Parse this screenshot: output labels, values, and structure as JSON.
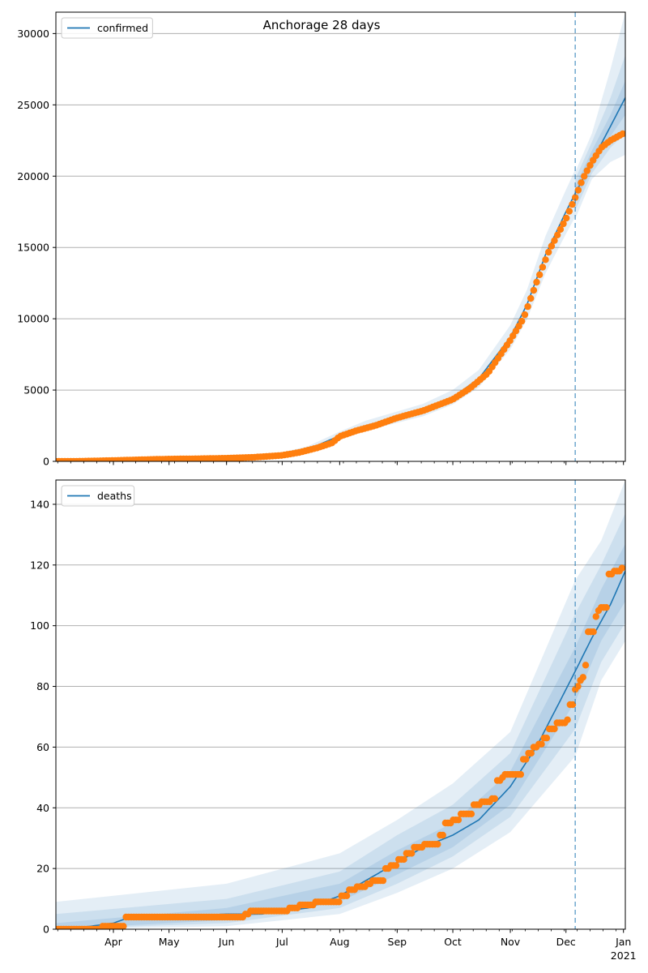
{
  "title": "Anchorage 28 days",
  "colors": {
    "model": "#1f77b4",
    "observed": "#ff7f0e",
    "band": "#1f77b4",
    "grid": "#b0b0b0",
    "vline": "#1f77b4"
  },
  "x_tick_labels": [
    {
      "date": "2020-04-01",
      "label": "Apr"
    },
    {
      "date": "2020-05-01",
      "label": "May"
    },
    {
      "date": "2020-06-01",
      "label": "Jun"
    },
    {
      "date": "2020-07-01",
      "label": "Jul"
    },
    {
      "date": "2020-08-01",
      "label": "Aug"
    },
    {
      "date": "2020-09-01",
      "label": "Sep"
    },
    {
      "date": "2020-10-01",
      "label": "Oct"
    },
    {
      "date": "2020-11-01",
      "label": "Nov"
    },
    {
      "date": "2020-12-01",
      "label": "Dec"
    },
    {
      "date": "2021-01-01",
      "label": "Jan",
      "label2": "2021"
    }
  ],
  "chart_data": [
    {
      "type": "line",
      "title": "Anchorage 28 days",
      "legend": {
        "label": "confirmed",
        "placement": "top-left"
      },
      "xlim": [
        "2020-03-01",
        "2021-01-02"
      ],
      "ylim": [
        0,
        31500
      ],
      "y_ticks": [
        0,
        5000,
        10000,
        15000,
        20000,
        25000,
        30000
      ],
      "grid": "y",
      "forecast_start": "2020-12-06",
      "model": {
        "name": "confirmed",
        "points": [
          [
            "2020-03-01",
            0
          ],
          [
            "2020-04-01",
            80
          ],
          [
            "2020-05-01",
            180
          ],
          [
            "2020-06-01",
            220
          ],
          [
            "2020-06-20",
            300
          ],
          [
            "2020-07-01",
            450
          ],
          [
            "2020-07-15",
            850
          ],
          [
            "2020-08-01",
            1800
          ],
          [
            "2020-08-15",
            2500
          ],
          [
            "2020-09-01",
            3100
          ],
          [
            "2020-09-15",
            3600
          ],
          [
            "2020-10-01",
            4500
          ],
          [
            "2020-10-15",
            5800
          ],
          [
            "2020-11-01",
            8700
          ],
          [
            "2020-11-10",
            11000
          ],
          [
            "2020-11-20",
            14500
          ],
          [
            "2020-12-01",
            17500
          ],
          [
            "2020-12-06",
            18800
          ],
          [
            "2020-12-15",
            21000
          ],
          [
            "2020-12-25",
            23500
          ],
          [
            "2021-01-02",
            25500
          ]
        ]
      },
      "bands": [
        {
          "lower": [
            [
              "2020-12-06",
              17000
            ],
            [
              "2020-12-15",
              19800
            ],
            [
              "2020-12-25",
              21000
            ],
            [
              "2021-01-02",
              21500
            ]
          ],
          "upper": [
            [
              "2020-12-06",
              20300
            ],
            [
              "2020-12-15",
              23000
            ],
            [
              "2020-12-25",
              27500
            ],
            [
              "2021-01-02",
              31500
            ]
          ]
        },
        {
          "lower": [
            [
              "2020-12-06",
              17600
            ],
            [
              "2020-12-15",
              20200
            ],
            [
              "2020-12-25",
              22000
            ],
            [
              "2021-01-02",
              23000
            ]
          ],
          "upper": [
            [
              "2020-12-06",
              19800
            ],
            [
              "2020-12-15",
              22400
            ],
            [
              "2020-12-25",
              25500
            ],
            [
              "2021-01-02",
              28500
            ]
          ]
        },
        {
          "lower": [
            [
              "2020-12-06",
              18200
            ],
            [
              "2020-12-15",
              20500
            ],
            [
              "2020-12-25",
              22800
            ],
            [
              "2021-01-02",
              24300
            ]
          ],
          "upper": [
            [
              "2020-12-06",
              19300
            ],
            [
              "2020-12-15",
              21800
            ],
            [
              "2020-12-25",
              24300
            ],
            [
              "2021-01-02",
              26700
            ]
          ]
        }
      ],
      "history_band": {
        "lower_frac": 0.92,
        "upper_frac": 1.08
      },
      "observed": {
        "name": "observed",
        "points": [
          [
            "2020-03-01",
            0
          ],
          [
            "2020-03-15",
            10
          ],
          [
            "2020-04-01",
            60
          ],
          [
            "2020-04-15",
            110
          ],
          [
            "2020-05-01",
            160
          ],
          [
            "2020-05-15",
            180
          ],
          [
            "2020-06-01",
            220
          ],
          [
            "2020-06-15",
            280
          ],
          [
            "2020-07-01",
            420
          ],
          [
            "2020-07-10",
            620
          ],
          [
            "2020-07-20",
            950
          ],
          [
            "2020-07-28",
            1300
          ],
          [
            "2020-08-01",
            1750
          ],
          [
            "2020-08-10",
            2150
          ],
          [
            "2020-08-20",
            2500
          ],
          [
            "2020-09-01",
            3050
          ],
          [
            "2020-09-15",
            3550
          ],
          [
            "2020-10-01",
            4350
          ],
          [
            "2020-10-10",
            5100
          ],
          [
            "2020-10-20",
            6200
          ],
          [
            "2020-11-01",
            8500
          ],
          [
            "2020-11-08",
            10000
          ],
          [
            "2020-11-15",
            12500
          ],
          [
            "2020-11-22",
            14800
          ],
          [
            "2020-12-01",
            17000
          ],
          [
            "2020-12-06",
            18500
          ],
          [
            "2020-12-10",
            19800
          ],
          [
            "2020-12-15",
            21000
          ],
          [
            "2020-12-20",
            22000
          ],
          [
            "2020-12-25",
            22500
          ],
          [
            "2021-01-01",
            23000
          ]
        ]
      }
    },
    {
      "type": "line",
      "legend": {
        "label": "deaths",
        "placement": "top-left"
      },
      "xlim": [
        "2020-03-01",
        "2021-01-02"
      ],
      "ylim": [
        0,
        148
      ],
      "y_ticks": [
        0,
        20,
        40,
        60,
        80,
        100,
        120,
        140
      ],
      "grid": "y",
      "forecast_start": "2020-12-06",
      "model": {
        "name": "deaths",
        "points": [
          [
            "2020-03-01",
            0
          ],
          [
            "2020-03-20",
            1
          ],
          [
            "2020-04-01",
            2
          ],
          [
            "2020-04-10",
            4
          ],
          [
            "2020-05-01",
            4
          ],
          [
            "2020-06-01",
            5
          ],
          [
            "2020-06-20",
            5
          ],
          [
            "2020-07-01",
            6
          ],
          [
            "2020-07-15",
            7
          ],
          [
            "2020-08-01",
            11
          ],
          [
            "2020-08-15",
            16
          ],
          [
            "2020-09-01",
            22
          ],
          [
            "2020-09-15",
            27
          ],
          [
            "2020-10-01",
            31
          ],
          [
            "2020-10-15",
            36
          ],
          [
            "2020-11-01",
            47
          ],
          [
            "2020-11-15",
            60
          ],
          [
            "2020-12-01",
            79
          ],
          [
            "2020-12-06",
            85
          ],
          [
            "2020-12-15",
            96
          ],
          [
            "2020-12-25",
            107
          ],
          [
            "2021-01-02",
            118
          ]
        ]
      },
      "bands": [
        {
          "lower": [
            [
              "2020-03-01",
              0
            ],
            [
              "2020-06-01",
              1
            ],
            [
              "2020-08-01",
              5
            ],
            [
              "2020-09-01",
              12
            ],
            [
              "2020-10-01",
              20
            ],
            [
              "2020-11-01",
              32
            ],
            [
              "2020-12-06",
              57
            ],
            [
              "2020-12-20",
              82
            ],
            [
              "2021-01-02",
              95
            ]
          ],
          "upper": [
            [
              "2020-03-01",
              9
            ],
            [
              "2020-06-01",
              15
            ],
            [
              "2020-08-01",
              25
            ],
            [
              "2020-09-01",
              36
            ],
            [
              "2020-10-01",
              48
            ],
            [
              "2020-11-01",
              65
            ],
            [
              "2020-12-06",
              115
            ],
            [
              "2020-12-20",
              128
            ],
            [
              "2021-01-02",
              148
            ]
          ]
        },
        {
          "lower": [
            [
              "2020-03-01",
              0
            ],
            [
              "2020-06-01",
              2
            ],
            [
              "2020-08-01",
              7
            ],
            [
              "2020-09-01",
              15
            ],
            [
              "2020-10-01",
              24
            ],
            [
              "2020-11-01",
              37
            ],
            [
              "2020-12-06",
              66
            ],
            [
              "2020-12-20",
              88
            ],
            [
              "2021-01-02",
              101
            ]
          ],
          "upper": [
            [
              "2020-03-01",
              5
            ],
            [
              "2020-06-01",
              10
            ],
            [
              "2020-08-01",
              19
            ],
            [
              "2020-09-01",
              31
            ],
            [
              "2020-10-01",
              41
            ],
            [
              "2020-11-01",
              58
            ],
            [
              "2020-12-06",
              104
            ],
            [
              "2020-12-20",
              120
            ],
            [
              "2021-01-02",
              137
            ]
          ]
        },
        {
          "lower": [
            [
              "2020-03-01",
              0
            ],
            [
              "2020-06-01",
              3
            ],
            [
              "2020-08-01",
              9
            ],
            [
              "2020-09-01",
              18
            ],
            [
              "2020-10-01",
              27
            ],
            [
              "2020-11-01",
              41
            ],
            [
              "2020-12-06",
              75
            ],
            [
              "2020-12-20",
              95
            ],
            [
              "2021-01-02",
              108
            ]
          ],
          "upper": [
            [
              "2020-03-01",
              2
            ],
            [
              "2020-06-01",
              7
            ],
            [
              "2020-08-01",
              15
            ],
            [
              "2020-09-01",
              26
            ],
            [
              "2020-10-01",
              35
            ],
            [
              "2020-11-01",
              52
            ],
            [
              "2020-12-06",
              93
            ],
            [
              "2020-12-20",
              112
            ],
            [
              "2021-01-02",
              127
            ]
          ]
        }
      ],
      "observed": {
        "name": "observed",
        "points": [
          [
            "2020-03-01",
            0
          ],
          [
            "2020-03-25",
            1
          ],
          [
            "2020-04-06",
            1
          ],
          [
            "2020-04-07",
            4
          ],
          [
            "2020-05-01",
            4
          ],
          [
            "2020-06-01",
            4
          ],
          [
            "2020-06-10",
            4
          ],
          [
            "2020-06-11",
            5
          ],
          [
            "2020-06-13",
            6
          ],
          [
            "2020-07-01",
            6
          ],
          [
            "2020-07-05",
            7
          ],
          [
            "2020-07-10",
            8
          ],
          [
            "2020-07-15",
            8
          ],
          [
            "2020-07-18",
            9
          ],
          [
            "2020-07-30",
            9
          ],
          [
            "2020-08-01",
            11
          ],
          [
            "2020-08-05",
            13
          ],
          [
            "2020-08-10",
            14
          ],
          [
            "2020-08-15",
            15
          ],
          [
            "2020-08-18",
            16
          ],
          [
            "2020-08-25",
            20
          ],
          [
            "2020-08-28",
            21
          ],
          [
            "2020-09-01",
            23
          ],
          [
            "2020-09-05",
            25
          ],
          [
            "2020-09-10",
            27
          ],
          [
            "2020-09-15",
            28
          ],
          [
            "2020-09-20",
            28
          ],
          [
            "2020-09-24",
            31
          ],
          [
            "2020-09-26",
            35
          ],
          [
            "2020-10-01",
            36
          ],
          [
            "2020-10-05",
            38
          ],
          [
            "2020-10-10",
            38
          ],
          [
            "2020-10-12",
            41
          ],
          [
            "2020-10-16",
            42
          ],
          [
            "2020-10-22",
            43
          ],
          [
            "2020-10-24",
            47
          ],
          [
            "2020-10-25",
            49
          ],
          [
            "2020-10-27",
            50
          ],
          [
            "2020-10-29",
            51
          ],
          [
            "2020-11-05",
            51
          ],
          [
            "2020-11-08",
            56
          ],
          [
            "2020-11-10",
            58
          ],
          [
            "2020-11-13",
            60
          ],
          [
            "2020-11-16",
            61
          ],
          [
            "2020-11-19",
            63
          ],
          [
            "2020-11-22",
            66
          ],
          [
            "2020-11-26",
            68
          ],
          [
            "2020-12-01",
            69
          ],
          [
            "2020-12-03",
            74
          ],
          [
            "2020-12-05",
            79
          ],
          [
            "2020-12-07",
            80
          ],
          [
            "2020-12-08",
            82
          ],
          [
            "2020-12-10",
            83
          ],
          [
            "2020-12-11",
            87
          ],
          [
            "2020-12-12",
            88
          ],
          [
            "2020-12-13",
            98
          ],
          [
            "2020-12-15",
            98
          ],
          [
            "2020-12-16",
            101
          ],
          [
            "2020-12-17",
            103
          ],
          [
            "2020-12-18",
            105
          ],
          [
            "2020-12-20",
            106
          ],
          [
            "2020-12-22",
            106
          ],
          [
            "2020-12-23",
            114
          ],
          [
            "2020-12-24",
            117
          ],
          [
            "2020-12-26",
            118
          ],
          [
            "2020-12-28",
            118
          ],
          [
            "2020-12-30",
            119
          ],
          [
            "2021-01-01",
            120
          ]
        ]
      }
    }
  ]
}
